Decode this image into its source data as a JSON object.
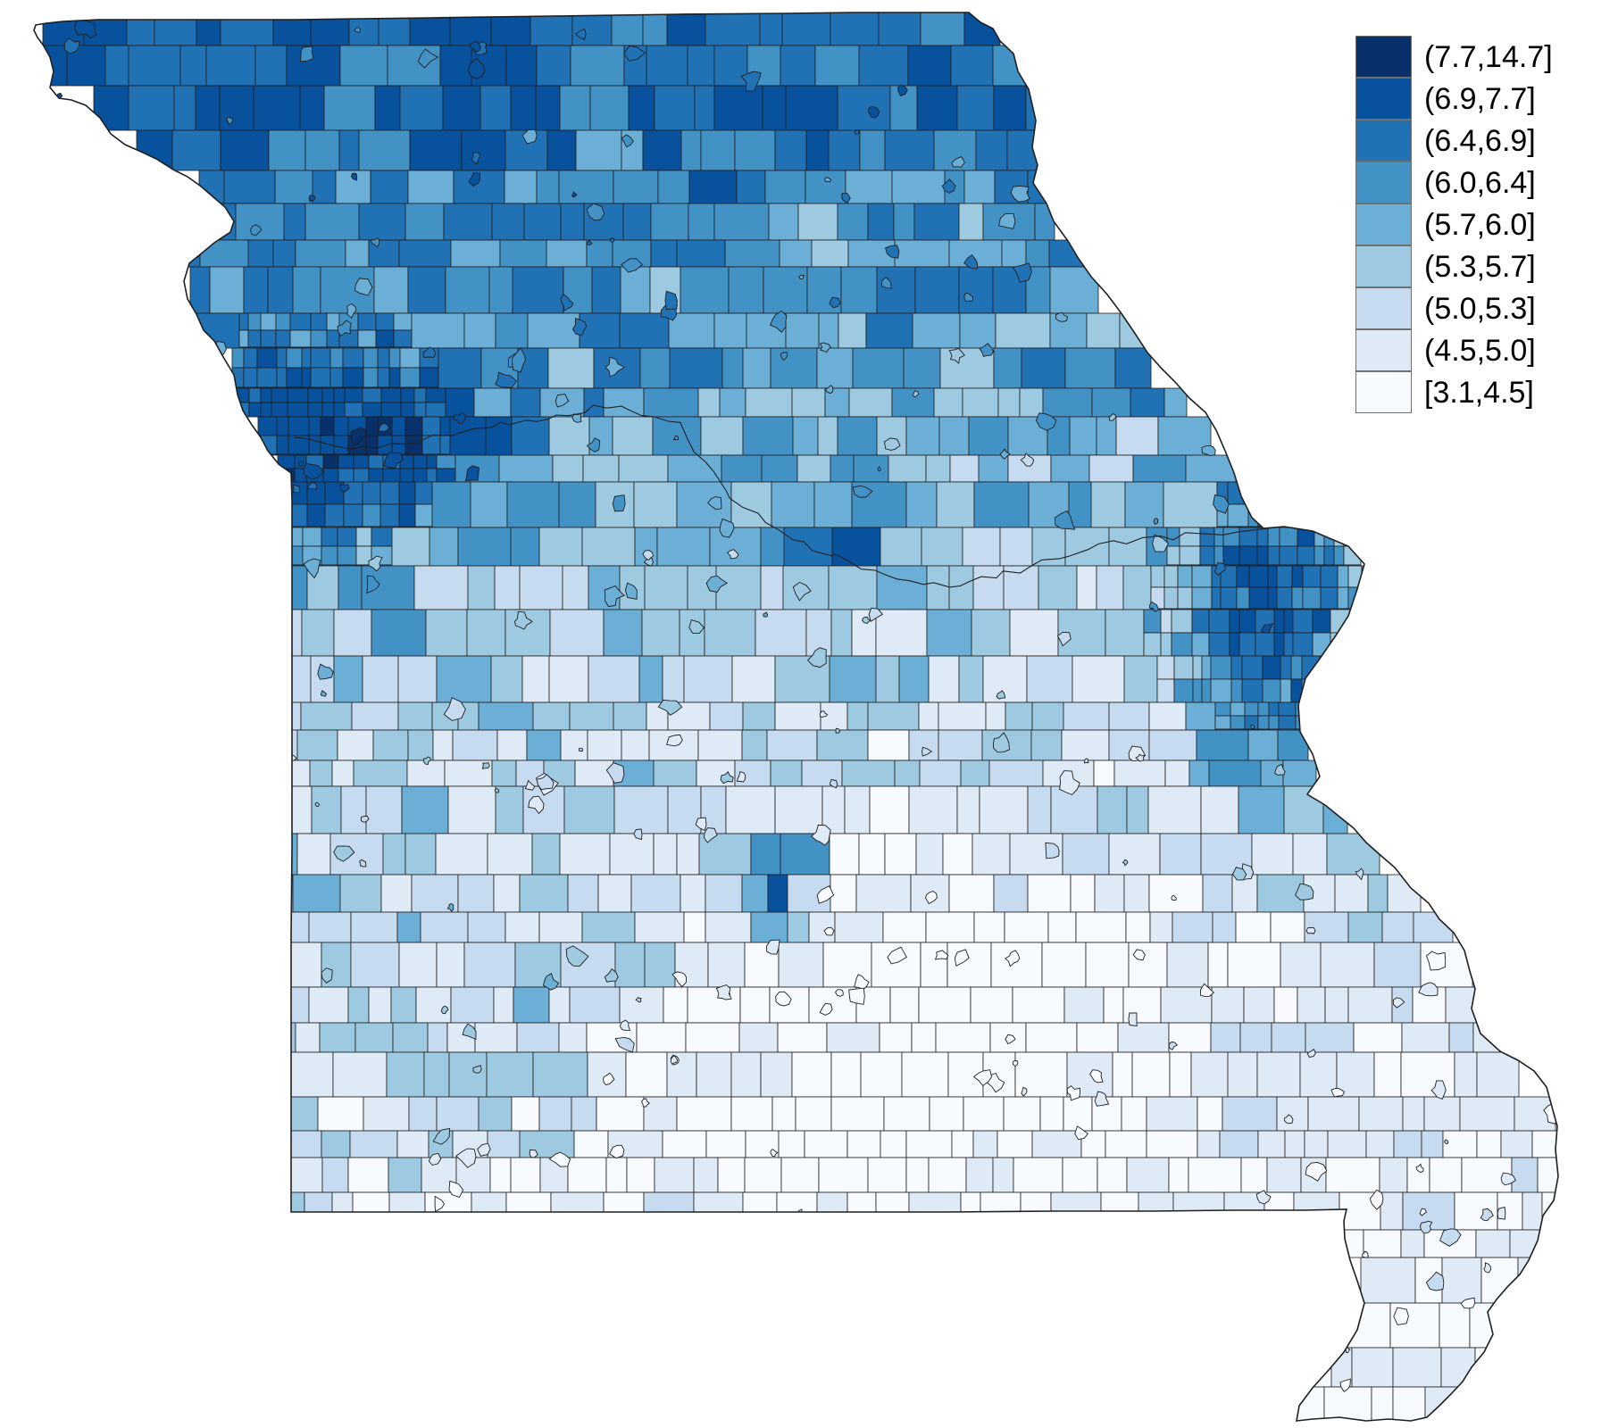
{
  "map": {
    "subject": "Missouri census tracts choropleth",
    "boundary_color": "#1f1f1f",
    "classes": [
      {
        "label": "(7.7,14.7]",
        "color": "#08306b",
        "min": 7.7,
        "max": 14.7
      },
      {
        "label": "(6.9,7.7]",
        "color": "#08519c",
        "min": 6.9,
        "max": 7.7
      },
      {
        "label": "(6.4,6.9]",
        "color": "#2171b5",
        "min": 6.4,
        "max": 6.9
      },
      {
        "label": "(6.0,6.4]",
        "color": "#4292c6",
        "min": 6.0,
        "max": 6.4
      },
      {
        "label": "(5.7,6.0]",
        "color": "#6baed6",
        "min": 5.7,
        "max": 6.0
      },
      {
        "label": "(5.3,5.7]",
        "color": "#9ecae1",
        "min": 5.3,
        "max": 5.7
      },
      {
        "label": "(5.0,5.3]",
        "color": "#c6dbef",
        "min": 5.0,
        "max": 5.3
      },
      {
        "label": "(4.5,5.0]",
        "color": "#deebf7",
        "min": 4.5,
        "max": 5.0
      },
      {
        "label": "[3.1,4.5]",
        "color": "#f7fbff",
        "min": 3.1,
        "max": 4.5
      }
    ]
  }
}
